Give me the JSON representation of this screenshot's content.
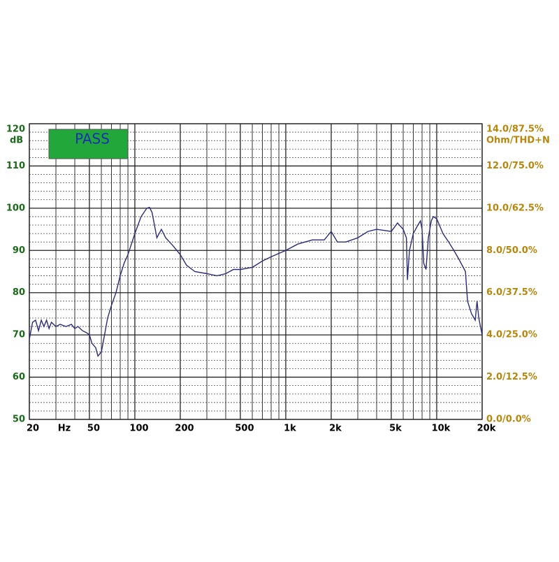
{
  "chart_data": {
    "type": "line",
    "badge": "PASS",
    "y_unit": "dB",
    "x_unit": "Hz",
    "y2_unit": "Ohm/THD+N",
    "xscale": "log",
    "xlim": [
      20,
      20000
    ],
    "xticks": [
      20,
      50,
      100,
      200,
      500,
      {
        "value": 1000,
        "label": "1k"
      },
      {
        "value": 2000,
        "label": "2k"
      },
      {
        "value": 5000,
        "label": "5k"
      },
      {
        "value": 10000,
        "label": "10k"
      },
      {
        "value": 20000,
        "label": "20k"
      }
    ],
    "xgrid": [
      30,
      40,
      60,
      70,
      80,
      90,
      300,
      400,
      600,
      700,
      800,
      900,
      3000,
      4000,
      6000,
      7000,
      8000,
      9000
    ],
    "ylim": [
      50,
      120
    ],
    "yticks": [
      50,
      60,
      70,
      80,
      90,
      100,
      110,
      120
    ],
    "ygrid": [
      52,
      54,
      56,
      58,
      62,
      64,
      66,
      68,
      72,
      74,
      76,
      78,
      82,
      84,
      86,
      88,
      92,
      94,
      96,
      98,
      102,
      104,
      106,
      108,
      112,
      114,
      116,
      118
    ],
    "y2lim": [
      0,
      14
    ],
    "y2ticks": [
      {
        "value": 0,
        "label": "0.0/0.0%"
      },
      {
        "value": 2,
        "label": "2.0/12.5%"
      },
      {
        "value": 4,
        "label": "4.0/25.0%"
      },
      {
        "value": 6,
        "label": "6.0/37.5%"
      },
      {
        "value": 8,
        "label": "8.0/50.0%"
      },
      {
        "value": 10,
        "label": "10.0/62.5%"
      },
      {
        "value": 12,
        "label": "12.0/75.0%"
      },
      {
        "value": 14,
        "label": "14.0/87.5%"
      }
    ],
    "grid": true,
    "series": [
      {
        "color": "#2b2b7a",
        "x": [
          20,
          21,
          22,
          23,
          24,
          25,
          26,
          27,
          28,
          30,
          32,
          35,
          38,
          40,
          42,
          45,
          48,
          50,
          52,
          55,
          57,
          60,
          63,
          66,
          70,
          75,
          80,
          85,
          90,
          100,
          110,
          120,
          125,
          130,
          140,
          150,
          160,
          180,
          200,
          220,
          250,
          300,
          350,
          400,
          450,
          500,
          600,
          700,
          800,
          1000,
          1200,
          1500,
          1800,
          2000,
          2200,
          2500,
          3000,
          3500,
          4000,
          5000,
          5500,
          6000,
          6300,
          6400,
          6600,
          7000,
          7500,
          7800,
          8000,
          8200,
          8500,
          8800,
          9200,
          9500,
          10000,
          11000,
          12000,
          13000,
          14000,
          15000,
          15500,
          16000,
          17000,
          18000,
          18500,
          19000,
          20000
        ],
        "values": [
          69,
          73,
          73.5,
          71,
          73.5,
          72,
          73.5,
          71.5,
          73,
          72,
          72.5,
          72,
          72.5,
          71.5,
          72,
          71,
          70.5,
          70,
          68,
          67,
          65,
          66,
          70,
          74,
          77,
          80,
          84,
          87,
          89,
          94,
          98,
          100,
          100.2,
          99,
          93,
          95,
          93,
          91,
          89,
          86.5,
          85,
          84.5,
          84,
          84.5,
          85.5,
          85.5,
          86,
          87.5,
          88.5,
          90,
          91.5,
          92.5,
          92.5,
          94.5,
          92,
          92,
          93,
          94.5,
          95,
          94.5,
          96.5,
          95,
          93,
          83,
          90,
          94,
          96,
          97,
          95,
          87,
          85.5,
          93,
          97,
          98,
          97.5,
          94,
          92,
          90,
          88,
          86,
          85,
          78,
          75,
          73.5,
          78,
          74,
          70
        ]
      }
    ]
  }
}
